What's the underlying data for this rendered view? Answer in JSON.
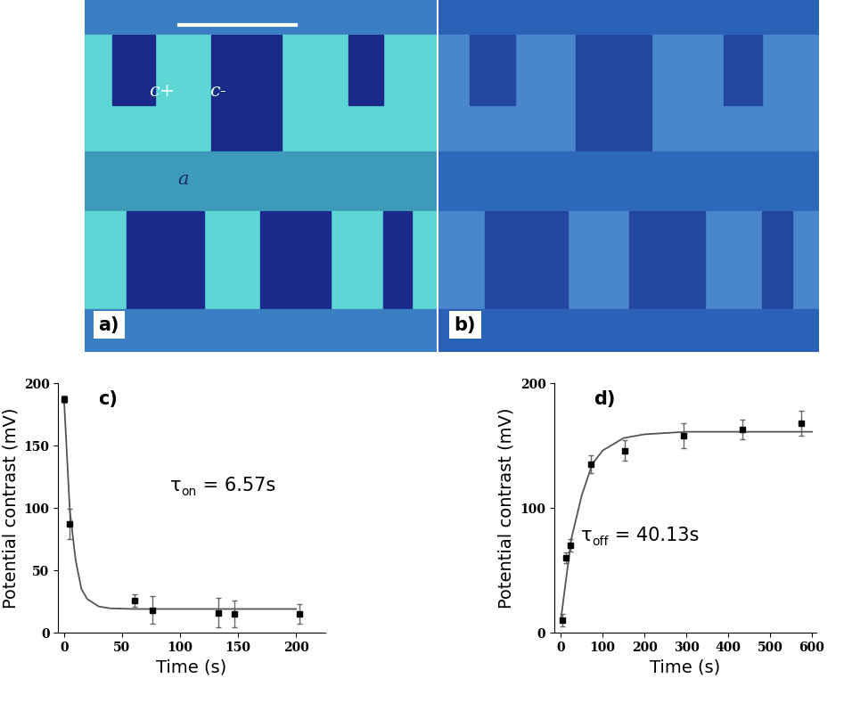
{
  "images": [
    {
      "panel_label": "a)",
      "labels": [
        "c+",
        "c-",
        "a"
      ]
    },
    {
      "panel_label": "b)"
    }
  ],
  "chart_data": [
    {
      "type": "scatter",
      "panel_label": "c)",
      "x_label": "Time (s)",
      "y_label": "Potential contrast (mV)",
      "xlim": [
        -5,
        225
      ],
      "xticks": [
        0,
        50,
        100,
        150,
        200
      ],
      "ylim": [
        0,
        200
      ],
      "yticks": [
        0,
        50,
        100,
        150,
        200
      ],
      "annotation": {
        "symbol": "τ",
        "subscript": "on",
        "text": " = 6.57s"
      },
      "series": [
        {
          "type": "scatter",
          "marker": "square",
          "color": "#000000",
          "x": [
            0,
            5,
            61,
            76,
            133,
            147,
            203
          ],
          "values": [
            187,
            87,
            26,
            18,
            16,
            15,
            15
          ],
          "errors": [
            3,
            12,
            5,
            11,
            12,
            11,
            8
          ]
        },
        {
          "type": "line",
          "line_style": "solid",
          "color": "#555555",
          "x": [
            0,
            5,
            10,
            15,
            20,
            30,
            40,
            60,
            100,
            150,
            200
          ],
          "values": [
            187,
            98,
            58,
            35,
            27,
            21,
            19.5,
            19,
            19,
            19,
            19
          ]
        }
      ]
    },
    {
      "type": "scatter",
      "panel_label": "d)",
      "x_label": "Time (s)",
      "y_label": "Potential contrast (mV)",
      "xlim": [
        -15,
        610
      ],
      "xticks": [
        0,
        100,
        200,
        300,
        400,
        500,
        600
      ],
      "ylim": [
        0,
        200
      ],
      "yticks": [
        0,
        100,
        200
      ],
      "annotation": {
        "symbol": "τ",
        "subscript": "off",
        "text": " = 40.13s"
      },
      "series": [
        {
          "type": "scatter",
          "marker": "square",
          "color": "#000000",
          "x": [
            3,
            12,
            22,
            72,
            152,
            293,
            433,
            575
          ],
          "values": [
            10,
            60,
            70,
            135,
            146,
            158,
            163,
            168
          ],
          "errors": [
            5,
            4,
            5,
            7,
            8,
            10,
            8,
            10
          ]
        },
        {
          "type": "line",
          "line_style": "solid",
          "color": "#555555",
          "x": [
            0,
            25,
            50,
            75,
            100,
            150,
            200,
            300,
            600
          ],
          "values": [
            10,
            75,
            110,
            135,
            146,
            156,
            159,
            161,
            161
          ]
        }
      ]
    }
  ]
}
